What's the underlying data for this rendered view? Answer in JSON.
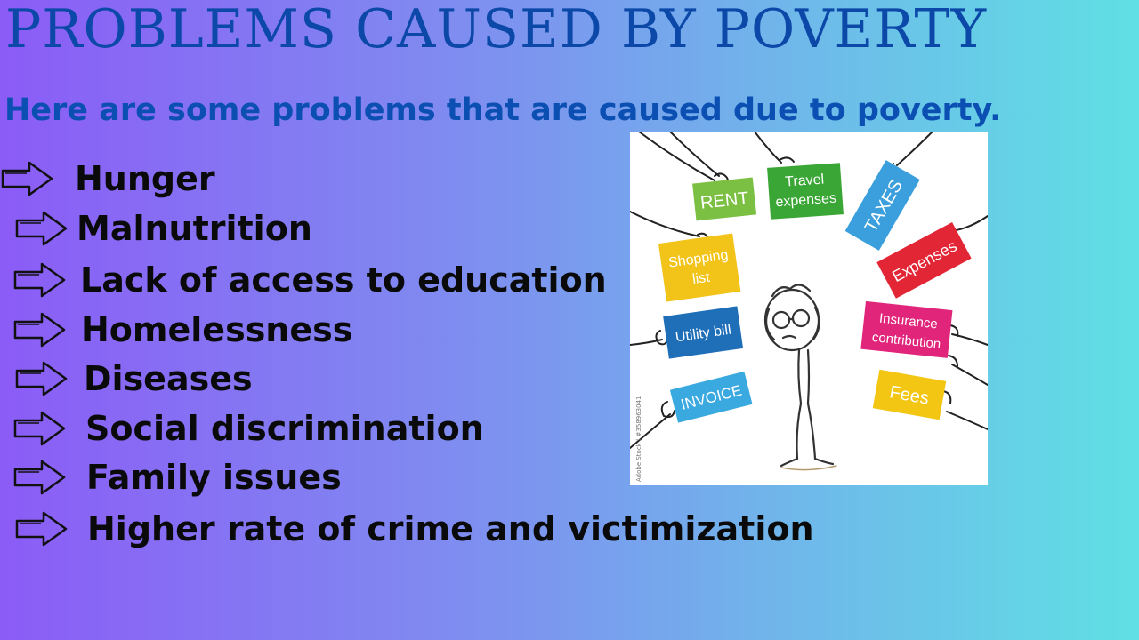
{
  "title": "PROBLEMS CAUSED BY POVERTY",
  "subtitle": "Here are some problems that are caused due to poverty.",
  "items": [
    {
      "label": "Hunger"
    },
    {
      "label": "Malnutrition"
    },
    {
      "label": "Lack of access to education"
    },
    {
      "label": "Homelessness"
    },
    {
      "label": "Diseases"
    },
    {
      "label": "Social discrimination"
    },
    {
      "label": "Family issues"
    },
    {
      "label": "Higher rate of crime and victimization"
    }
  ],
  "illustration": {
    "cards": {
      "rent": "RENT",
      "travel_1": "Travel",
      "travel_2": "expenses",
      "taxes": "TAXES",
      "shopping_1": "Shopping",
      "shopping_2": "list",
      "expenses": "Expenses",
      "utility": "Utility bill",
      "insurance_1": "Insurance",
      "insurance_2": "contribution",
      "invoice": "INVOICE",
      "fees": "Fees"
    },
    "watermark": "Adobe Stock | #358963041",
    "colors": {
      "rent": "#7bc043",
      "travel": "#3aa635",
      "taxes": "#3a9fdc",
      "shopping": "#f2c319",
      "expenses": "#e32636",
      "utility": "#1f6fb8",
      "insurance": "#e0257a",
      "invoice": "#3aa9e0",
      "fees": "#f3c614"
    },
    "background": "#ffffff"
  },
  "theme": {
    "title_color": "#0b48a8",
    "subtitle_color": "#0b4fb3",
    "text_color": "#0a0a0a"
  }
}
